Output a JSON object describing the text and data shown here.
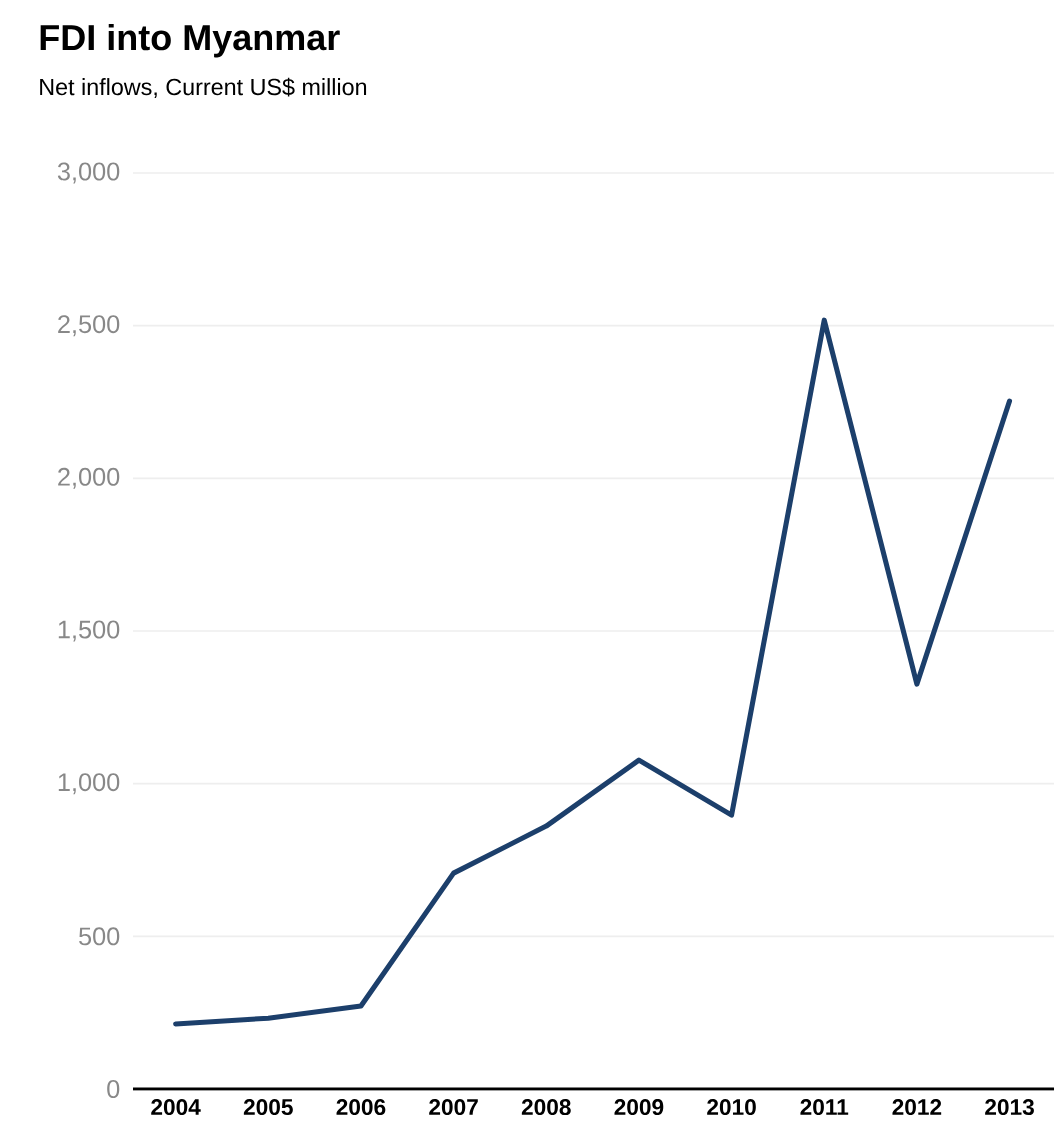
{
  "chart_data": {
    "type": "line",
    "title": "FDI into Myanmar",
    "subtitle": "Net inflows, Current US$ million",
    "categories": [
      "2004",
      "2005",
      "2006",
      "2007",
      "2008",
      "2009",
      "2010",
      "2011",
      "2012",
      "2013"
    ],
    "series": [
      {
        "color": "#1c3f6b",
        "values": [
          213,
          232,
          272,
          707,
          861,
          1077,
          897,
          2518,
          1326,
          2253
        ]
      }
    ],
    "ylim": [
      0,
      3000
    ],
    "yticks": [
      0,
      500,
      {
        "value": 1000,
        "label": "1,000"
      },
      {
        "value": 1500,
        "label": "1,500"
      },
      {
        "value": 2000,
        "label": "2,000"
      },
      {
        "value": 2500,
        "label": "2,500"
      },
      {
        "value": 3000,
        "label": "3,000"
      }
    ],
    "grid": "y",
    "marker": "none",
    "line_style": "solid"
  }
}
